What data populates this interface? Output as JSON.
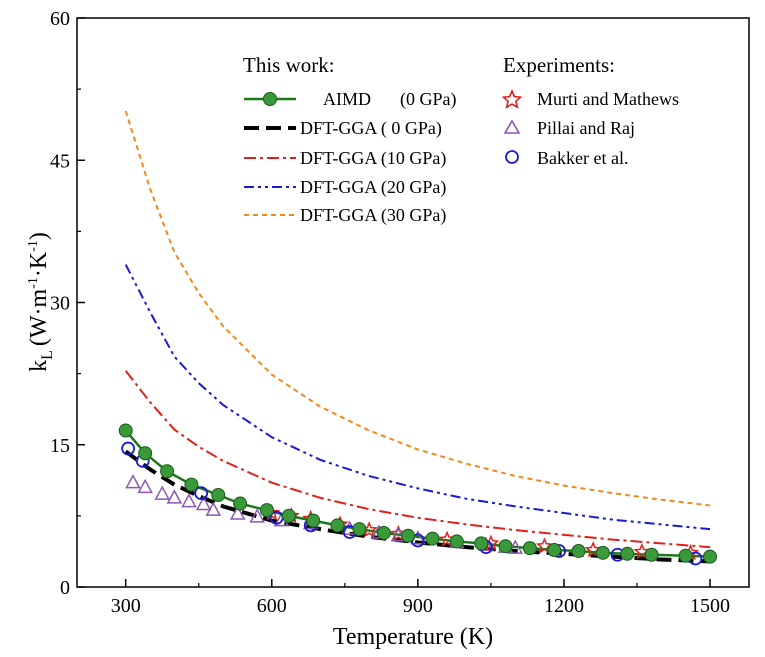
{
  "chart_data": {
    "type": "line",
    "xlabel": "Temperature (K)",
    "ylabel_main": "k",
    "ylabel_sub": "L",
    "ylabel_unit": "(W·m",
    "ylabel_exp1": "-1",
    "ylabel_mid": "·K",
    "ylabel_exp2": "-1",
    "ylabel_close": ")",
    "xlim": [
      200,
      1580
    ],
    "ylim": [
      0,
      60
    ],
    "xticks": [
      300,
      600,
      900,
      1200,
      1500
    ],
    "yticks": [
      0,
      15,
      30,
      45,
      60
    ],
    "legend_left_title": "This work:",
    "legend_right_title": "Experiments:",
    "series": [
      {
        "name": "AIMD (0 GPa)",
        "label_a": "AIMD",
        "label_b": "(0 GPa)",
        "color": "#1a7a1a",
        "marker": "#3a9a3a",
        "style": "line-marker",
        "x": [
          300,
          340,
          385,
          435,
          490,
          535,
          590,
          635,
          685,
          735,
          780,
          830,
          880,
          930,
          980,
          1030,
          1080,
          1130,
          1180,
          1230,
          1280,
          1330,
          1380,
          1450,
          1500
        ],
        "y": [
          16.5,
          14.1,
          12.2,
          10.8,
          9.7,
          8.8,
          8.1,
          7.5,
          7.0,
          6.5,
          6.1,
          5.7,
          5.4,
          5.1,
          4.8,
          4.6,
          4.3,
          4.1,
          3.9,
          3.8,
          3.6,
          3.5,
          3.4,
          3.3,
          3.2
        ]
      },
      {
        "name": "DFT-GGA ( 0 GPa)",
        "label": "DFT-GGA ( 0 GPa)",
        "color": "#000000",
        "style": "long-dash",
        "x": [
          300,
          350,
          400,
          450,
          500,
          600,
          700,
          800,
          900,
          1000,
          1100,
          1200,
          1300,
          1400,
          1500
        ],
        "y": [
          14.3,
          12.4,
          10.8,
          9.6,
          8.5,
          7.0,
          6.1,
          5.3,
          4.7,
          4.2,
          3.8,
          3.5,
          3.2,
          2.9,
          2.7
        ]
      },
      {
        "name": "DFT-GGA (10 GPa)",
        "label": "DFT-GGA (10 GPa)",
        "color": "#e0201b",
        "style": "dash-dot",
        "x": [
          300,
          350,
          400,
          450,
          500,
          600,
          700,
          800,
          900,
          1000,
          1100,
          1200,
          1300,
          1400,
          1500
        ],
        "y": [
          22.8,
          19.5,
          16.6,
          14.8,
          13.3,
          11.0,
          9.4,
          8.2,
          7.3,
          6.6,
          6.0,
          5.5,
          5.0,
          4.6,
          4.2
        ]
      },
      {
        "name": "DFT-GGA (20 GPa)",
        "label": "DFT-GGA (20 GPa)",
        "color": "#1a1ad6",
        "style": "dash-dot-dot",
        "x": [
          300,
          350,
          400,
          450,
          500,
          600,
          700,
          800,
          900,
          1000,
          1100,
          1200,
          1300,
          1400,
          1500
        ],
        "y": [
          34.0,
          29.0,
          24.3,
          21.5,
          19.2,
          15.8,
          13.4,
          11.7,
          10.4,
          9.3,
          8.5,
          7.8,
          7.1,
          6.6,
          6.1
        ]
      },
      {
        "name": "DFT-GGA (30 GPa)",
        "label": "DFT-GGA (30 GPa)",
        "color": "#f08a1c",
        "style": "short-dash",
        "x": [
          300,
          350,
          400,
          450,
          500,
          600,
          700,
          800,
          900,
          1000,
          1100,
          1200,
          1300,
          1400,
          1500
        ],
        "y": [
          50.2,
          42.0,
          35.3,
          31.0,
          27.5,
          22.4,
          19.0,
          16.5,
          14.5,
          13.0,
          11.7,
          10.7,
          9.9,
          9.2,
          8.6
        ]
      }
    ],
    "experiments": [
      {
        "name": "Murti and Mathews",
        "label": "Murti and Mathews",
        "color": "#e0201b",
        "marker": "star",
        "x": [
          600,
          640,
          680,
          740,
          800,
          860,
          960,
          1050,
          1160,
          1260,
          1360,
          1460
        ],
        "y": [
          7.8,
          7.5,
          7.2,
          6.6,
          6.0,
          5.6,
          5.0,
          4.6,
          4.3,
          3.9,
          3.7,
          3.6
        ]
      },
      {
        "name": "Pillai and Raj",
        "label": "Pillai and Raj",
        "color": "#8a58b0",
        "marker": "triangle",
        "x": [
          315,
          340,
          375,
          400,
          430,
          460,
          480,
          530,
          570,
          620,
          680,
          760,
          820,
          860,
          900,
          980,
          1040,
          1080,
          1100
        ],
        "y": [
          11.0,
          10.5,
          9.8,
          9.4,
          9.0,
          8.7,
          8.1,
          7.7,
          7.4,
          7.0,
          6.7,
          6.1,
          5.7,
          5.4,
          5.1,
          4.7,
          4.4,
          4.2,
          4.1
        ]
      },
      {
        "name": "Bakker et al.",
        "label": "Bakker et al.",
        "color": "#1a1ad6",
        "marker": "circle",
        "x": [
          305,
          335,
          455,
          610,
          680,
          760,
          900,
          1040,
          1190,
          1310,
          1470
        ],
        "y": [
          14.6,
          13.3,
          9.9,
          7.3,
          6.5,
          5.8,
          4.9,
          4.2,
          3.8,
          3.4,
          3.0
        ]
      }
    ]
  }
}
